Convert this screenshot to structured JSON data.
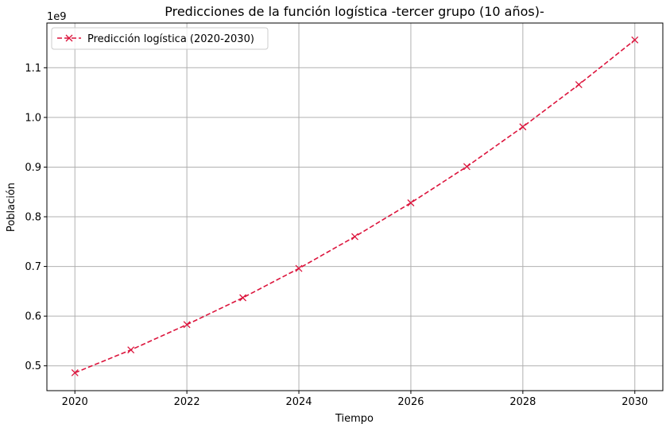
{
  "chart_data": {
    "type": "line",
    "title": "Predicciones de la función logística -tercer grupo (10 años)-",
    "xlabel": "Tiempo",
    "ylabel": "Población",
    "y_offset_label": "1e9",
    "xlim": [
      2019.5,
      2030.5
    ],
    "ylim": [
      0.45,
      1.19
    ],
    "xticks": [
      2020,
      2022,
      2024,
      2026,
      2028,
      2030
    ],
    "xtick_labels": [
      "2020",
      "2022",
      "2024",
      "2026",
      "2028",
      "2030"
    ],
    "yticks": [
      0.5,
      0.6,
      0.7,
      0.8,
      0.9,
      1.0,
      1.1
    ],
    "ytick_labels": [
      "0.5",
      "0.6",
      "0.7",
      "0.8",
      "0.9",
      "1.0",
      "1.1"
    ],
    "grid": true,
    "legend_position": "top-left",
    "series": [
      {
        "name": "Predicción logística (2020-2030)",
        "color": "#dc143c",
        "line_style": "dashed",
        "marker": "x",
        "x": [
          2020,
          2021,
          2022,
          2023,
          2024,
          2025,
          2026,
          2027,
          2028,
          2029,
          2030
        ],
        "y": [
          0.486,
          0.532,
          0.583,
          0.637,
          0.696,
          0.76,
          0.828,
          0.901,
          0.981,
          1.066,
          1.156
        ]
      }
    ]
  }
}
